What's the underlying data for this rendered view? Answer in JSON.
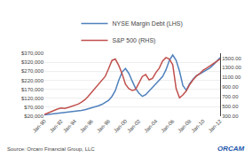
{
  "chart_data": {
    "type": "line",
    "categories": [
      "Jan-90",
      null,
      null,
      null,
      null,
      "Jan-92",
      null,
      null,
      null,
      "Jan-94",
      null,
      null,
      null,
      null,
      "Jan-96",
      null,
      null,
      null,
      null,
      "Jan-98",
      null,
      null,
      null,
      null,
      "Jan-00",
      null,
      null,
      null,
      "Jan-02",
      null,
      null,
      null,
      null,
      "Jan-04",
      null,
      null,
      null,
      null,
      "Jan-06",
      null,
      null,
      null,
      null,
      "Jan-08",
      null,
      null,
      null,
      "Jan-10",
      null,
      null,
      null,
      null,
      "Jan-12"
    ],
    "series": [
      {
        "name": "NYSE Margin Debt (LHS)",
        "color": "#4f81bd",
        "values": [
          27000,
          29000,
          31000,
          33000,
          36000,
          38000,
          40000,
          42000,
          44000,
          46000,
          49000,
          52000,
          56000,
          61000,
          66000,
          72000,
          78000,
          85000,
          95000,
          108000,
          130000,
          162000,
          218000,
          265000,
          285000,
          258000,
          215000,
          175000,
          148000,
          130000,
          140000,
          160000,
          178000,
          195000,
          215000,
          240000,
          278000,
          330000,
          360000,
          330000,
          270000,
          190000,
          165000,
          200000,
          225000,
          245000,
          255000,
          265000,
          275000,
          288000,
          305000,
          325000,
          345000
        ]
      },
      {
        "name": "S&P 500 (RHS)",
        "color": "#c0504d",
        "axis": "y2",
        "values": [
          335,
          365,
          395,
          420,
          450,
          470,
          460,
          480,
          500,
          520,
          550,
          590,
          640,
          710,
          790,
          870,
          960,
          1050,
          1120,
          1280,
          1450,
          1480,
          1350,
          1180,
          960,
          870,
          830,
          850,
          1000,
          1120,
          1160,
          1050,
          1080,
          1200,
          1290,
          1440,
          1510,
          1480,
          1360,
          870,
          680,
          740,
          820,
          950,
          1050,
          1130,
          1180,
          1250,
          1290,
          1340,
          1380,
          1430,
          1480
        ]
      }
    ],
    "ylim": [
      20000,
      370000
    ],
    "yticks": [
      {
        "value": 20000,
        "label": "$20,000"
      },
      {
        "value": 70000,
        "label": "$70,000"
      },
      {
        "value": 120000,
        "label": "$120,000"
      },
      {
        "value": 170000,
        "label": "$170,000"
      },
      {
        "value": 220000,
        "label": "$220,000"
      },
      {
        "value": 270000,
        "label": "$270,000"
      },
      {
        "value": 320000,
        "label": "$320,000"
      },
      {
        "value": 370000,
        "label": "$370,000"
      }
    ],
    "y2lim": [
      300,
      1600
    ],
    "y2ticks": [
      {
        "value": 300,
        "label": "300.00"
      },
      {
        "value": 500,
        "label": "500.00"
      },
      {
        "value": 700,
        "label": "700.00"
      },
      {
        "value": 900,
        "label": "900.00"
      },
      {
        "value": 1100,
        "label": "1100.00"
      },
      {
        "value": 1300,
        "label": "1300.00"
      },
      {
        "value": 1500,
        "label": "1500.00"
      }
    ],
    "grid": true,
    "legend": "top",
    "annotations": [
      "Source: Orcam Financial Group, LLC",
      "ORCAM"
    ]
  }
}
